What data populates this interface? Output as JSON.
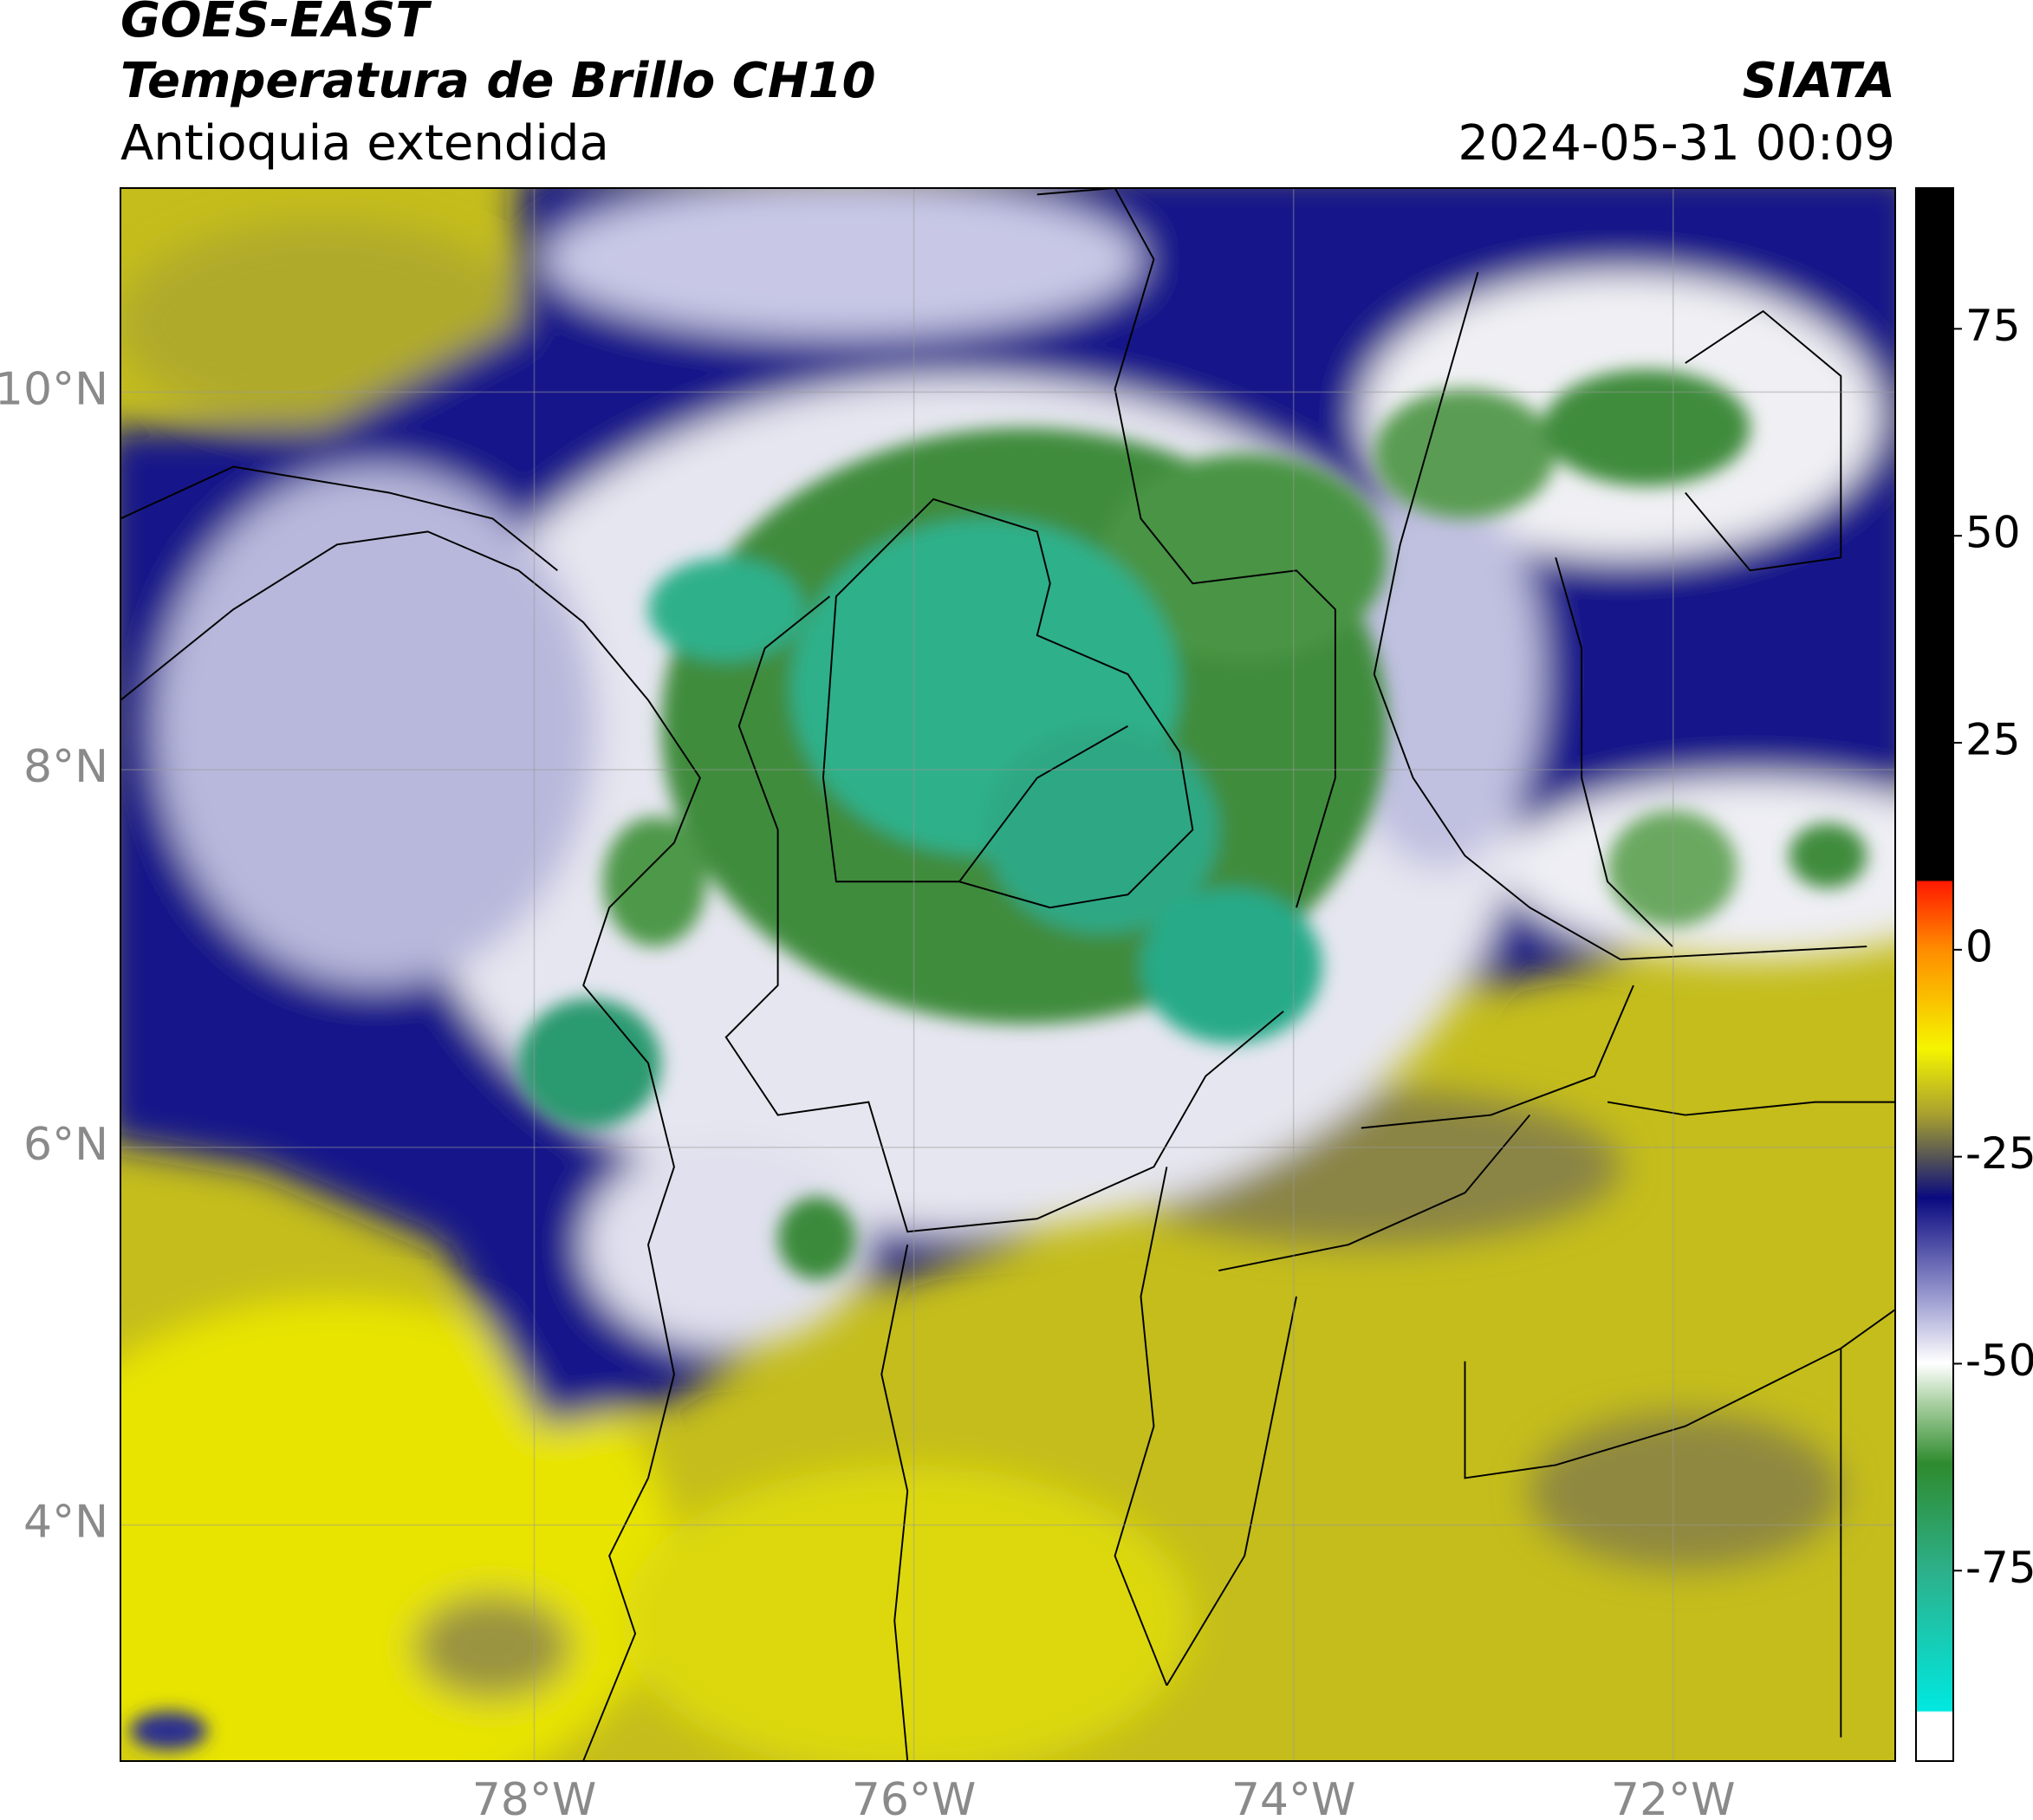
{
  "header": {
    "title": "GOES-EAST",
    "subtitle": "Temperatura de Brillo CH10",
    "region": "Antioquia extendida",
    "source": "SIATA",
    "datetime": "2024-05-31 00:09"
  },
  "map": {
    "lonlim": [
      -80.18,
      -70.83
    ],
    "latlim": [
      2.75,
      11.08
    ],
    "lon_ticks": [
      {
        "value": -78,
        "label": "78°W"
      },
      {
        "value": -76,
        "label": "76°W"
      },
      {
        "value": -74,
        "label": "74°W"
      },
      {
        "value": -72,
        "label": "72°W"
      }
    ],
    "lat_ticks": [
      {
        "value": 10,
        "label": "10°N"
      },
      {
        "value": 8,
        "label": "8°N"
      },
      {
        "value": 6,
        "label": "6°N"
      },
      {
        "value": 4,
        "label": "4°N"
      }
    ],
    "colorbar": {
      "lim": [
        -98,
        92
      ],
      "ticks": [
        75,
        50,
        25,
        0,
        -25,
        -50,
        -75
      ]
    }
  }
}
